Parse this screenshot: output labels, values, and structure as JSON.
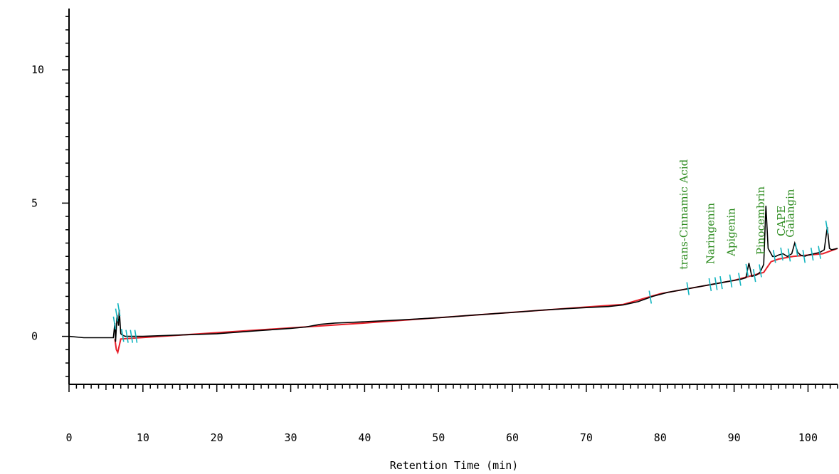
{
  "chart_data": {
    "type": "line",
    "title": "",
    "xlabel": "Retention Time (min)",
    "ylabel": "",
    "xlim": [
      0,
      104
    ],
    "ylim": [
      -1.8,
      12.3
    ],
    "x_ticks": [
      0,
      10,
      20,
      30,
      40,
      50,
      60,
      70,
      80,
      90,
      100
    ],
    "y_ticks": [
      0,
      5,
      10
    ],
    "grid": false,
    "colors": {
      "signal": "#000000",
      "baseline": "#e8202a",
      "markers": "#13b5c0",
      "labels": "#2a8a1c"
    },
    "series": [
      {
        "role": "signal",
        "x": [
          0,
          2,
          4,
          6,
          6.2,
          6.3,
          6.5,
          6.7,
          6.8,
          7.0,
          7.2,
          7.6,
          8,
          10,
          15,
          20,
          25,
          30,
          32,
          34,
          36,
          38,
          40,
          45,
          50,
          55,
          60,
          65,
          70,
          73,
          75,
          77,
          79,
          81,
          83,
          85,
          87,
          88,
          89,
          90,
          91,
          91.6,
          92,
          92.4,
          93,
          93.5,
          94,
          94.3,
          94.6,
          94.9,
          95.2,
          95.6,
          96,
          96.6,
          97.2,
          97.8,
          98.2,
          98.6,
          99,
          99.5,
          100,
          100.8,
          101.6,
          102.2,
          102.6,
          102.9,
          103.2,
          104
        ],
        "y": [
          0,
          -0.05,
          -0.05,
          -0.05,
          0.5,
          -0.2,
          0.8,
          0.4,
          1.0,
          0.1,
          0.05,
          0.0,
          0.0,
          0.0,
          0.05,
          0.1,
          0.2,
          0.3,
          0.35,
          0.45,
          0.5,
          0.52,
          0.55,
          0.62,
          0.7,
          0.8,
          0.9,
          1.0,
          1.08,
          1.12,
          1.18,
          1.3,
          1.5,
          1.65,
          1.75,
          1.85,
          1.95,
          2.0,
          2.05,
          2.1,
          2.15,
          2.2,
          2.75,
          2.25,
          2.3,
          2.4,
          2.7,
          4.9,
          3.3,
          3.15,
          3.0,
          3.0,
          3.05,
          3.1,
          3.0,
          3.1,
          3.5,
          3.15,
          3.05,
          3.0,
          3.05,
          3.1,
          3.15,
          3.25,
          4.1,
          3.3,
          3.25,
          3.3
        ]
      },
      {
        "role": "baseline",
        "x": [
          6.2,
          6.4,
          6.6,
          7.0,
          40,
          50,
          60,
          70,
          75,
          80,
          85,
          90,
          94,
          95,
          96,
          98,
          100,
          102,
          104
        ],
        "y": [
          -0.1,
          -0.5,
          -0.6,
          -0.1,
          0.5,
          0.7,
          0.9,
          1.1,
          1.2,
          1.6,
          1.85,
          2.1,
          2.4,
          2.8,
          2.9,
          3.0,
          3.05,
          3.1,
          3.3
        ]
      }
    ],
    "peak_markers": [
      6.2,
      6.5,
      6.8,
      7.3,
      7.9,
      8.5,
      9.1,
      78.7,
      83.8,
      86.8,
      87.6,
      88.3,
      89.6,
      90.8,
      91.8,
      92.8,
      93.6,
      95.5,
      96.5,
      97.5,
      98.5,
      99.5,
      100.6,
      101.6,
      102.6
    ],
    "annotations": [
      {
        "text": "trans-Cinnamic Acid",
        "x": 83.2,
        "y": 2.4
      },
      {
        "text": "Naringenin",
        "x": 86.8,
        "y": 2.6
      },
      {
        "text": "Apigenin",
        "x": 89.6,
        "y": 2.9
      },
      {
        "text": "Pinocembrin",
        "x": 93.6,
        "y": 2.95
      },
      {
        "text": "CAPE",
        "x": 96.4,
        "y": 3.65
      },
      {
        "text": "Galangin",
        "x": 97.6,
        "y": 3.6
      }
    ]
  }
}
